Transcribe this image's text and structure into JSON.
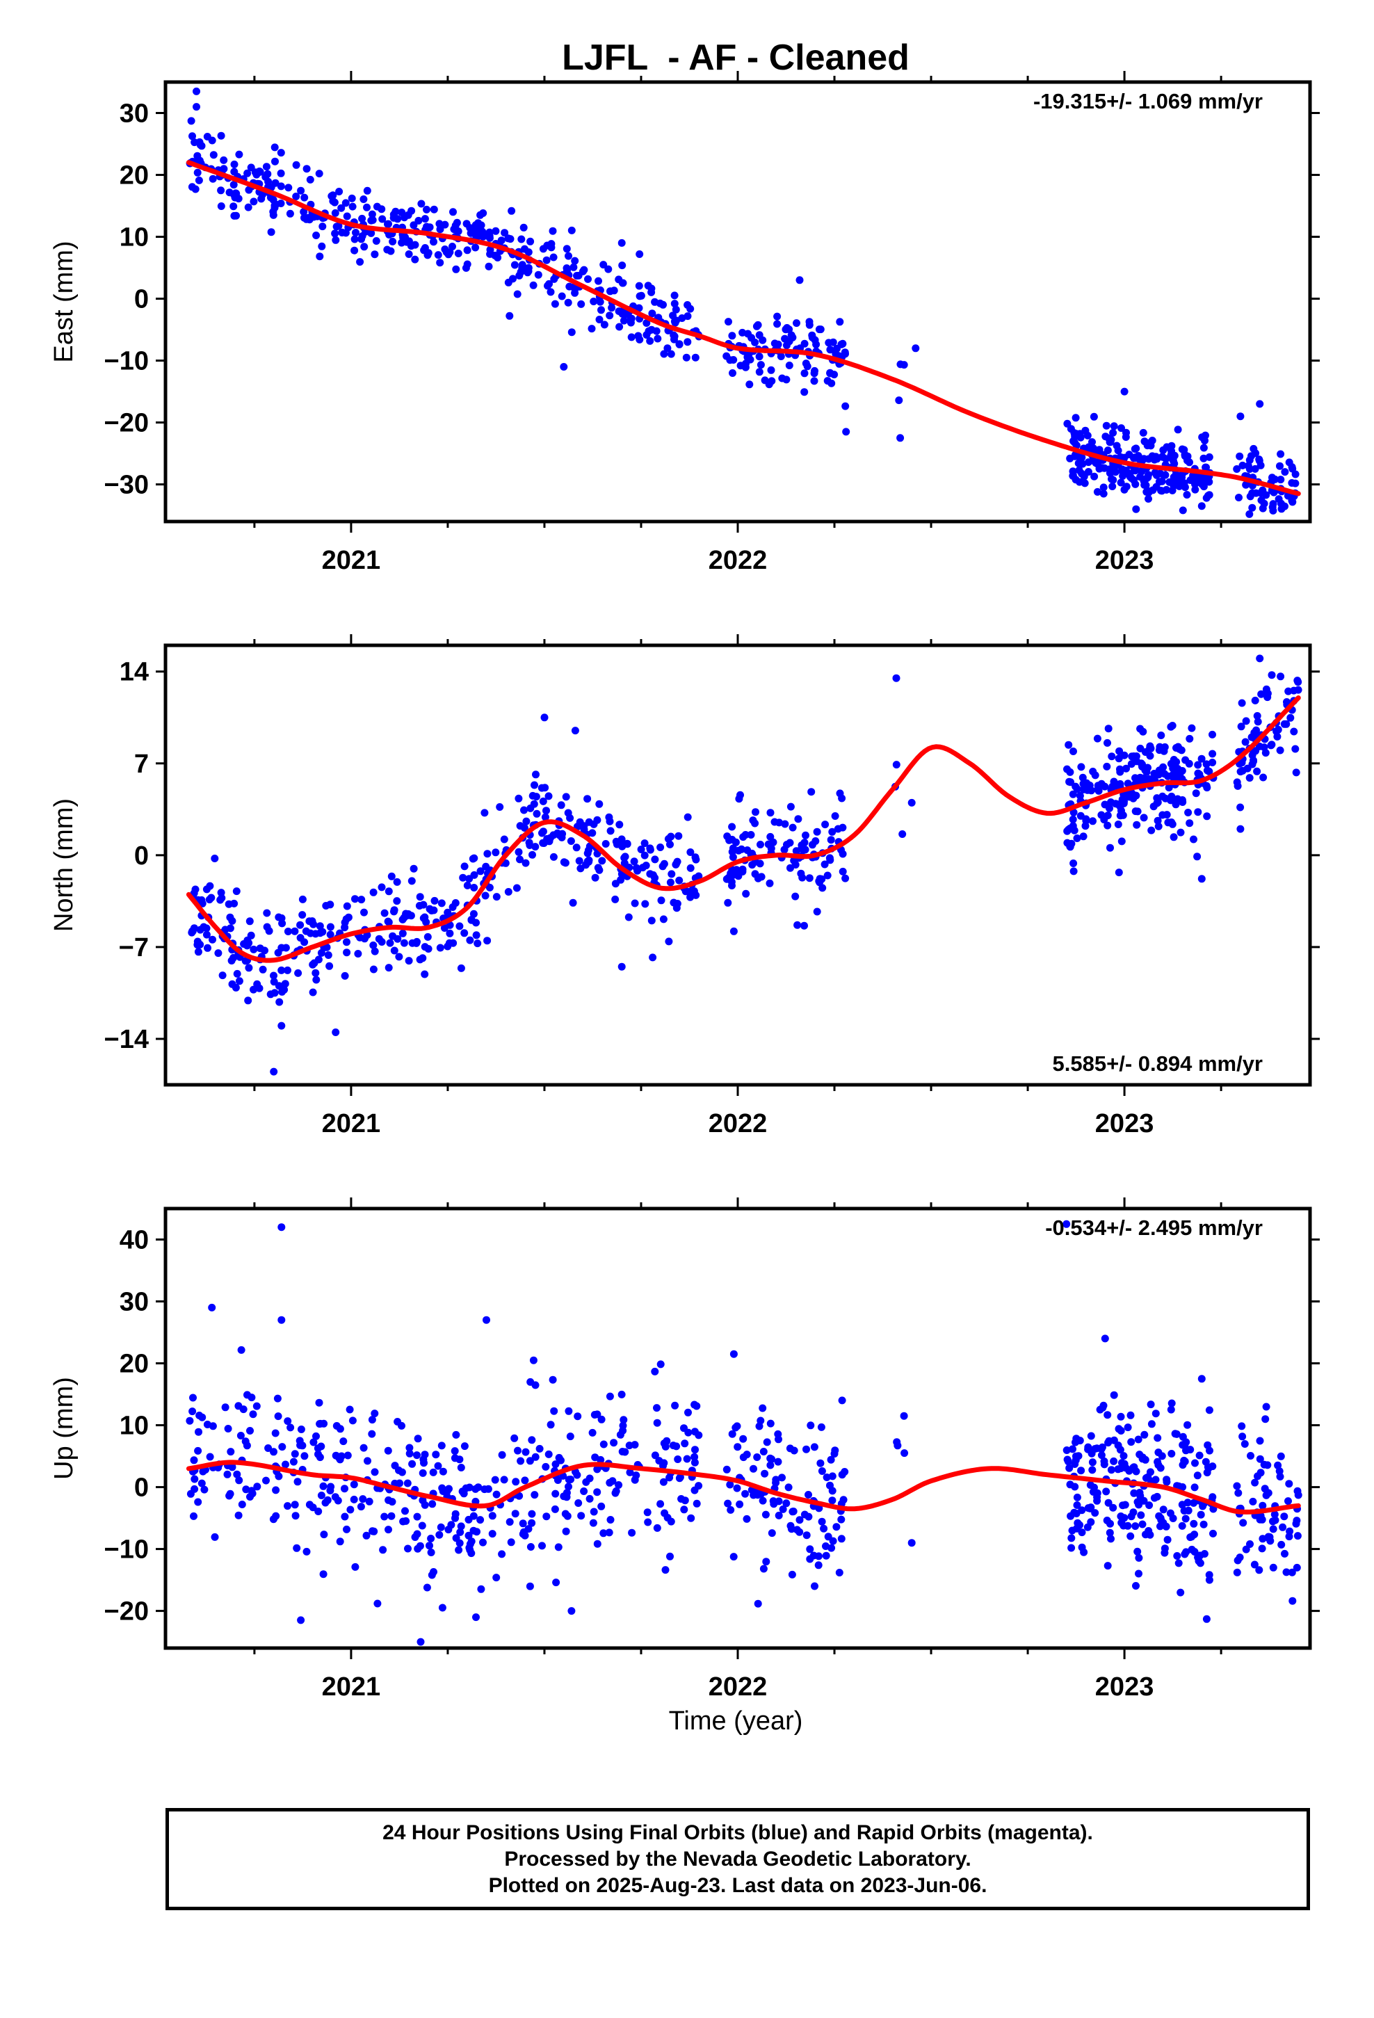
{
  "title": "LJFL  - AF - Cleaned",
  "xlabel": "Time (year)",
  "footer": {
    "line1": "24 Hour Positions Using Final Orbits (blue) and Rapid Orbits (magenta).",
    "line2": "Processed by the Nevada Geodetic Laboratory.",
    "line3": "Plotted on 2025-Aug-23. Last data on 2023-Jun-06."
  },
  "colors": {
    "points": "#0000ff",
    "fit": "#ff0000",
    "axes": "#000000"
  },
  "chart_data": [
    {
      "type": "scatter",
      "component": "east",
      "ylabel": "East (mm)",
      "rate_text": "-19.315+/- 1.069 mm/yr",
      "rate_position": "top-right",
      "xlim": [
        2020.52,
        2023.48
      ],
      "ylim": [
        -36,
        35
      ],
      "xticks": [
        2021,
        2022,
        2023
      ],
      "yticks": [
        30,
        20,
        10,
        0,
        -10,
        -20,
        -30
      ],
      "fit_nodes": [
        [
          2020.58,
          22
        ],
        [
          2020.8,
          17
        ],
        [
          2021.0,
          12
        ],
        [
          2021.2,
          10.5
        ],
        [
          2021.4,
          8
        ],
        [
          2021.6,
          2
        ],
        [
          2021.8,
          -4
        ],
        [
          2021.9,
          -6
        ],
        [
          2022.0,
          -8
        ],
        [
          2022.2,
          -9
        ],
        [
          2022.4,
          -13
        ],
        [
          2022.6,
          -18.5
        ],
        [
          2022.8,
          -23
        ],
        [
          2023.0,
          -26.5
        ],
        [
          2023.2,
          -28
        ],
        [
          2023.3,
          -29
        ],
        [
          2023.45,
          -31.5
        ]
      ],
      "segments": [
        [
          2020.58,
          2021.9,
          420
        ],
        [
          2021.97,
          2022.28,
          110
        ],
        [
          2022.4,
          2022.45,
          3
        ],
        [
          2022.85,
          2023.23,
          230
        ],
        [
          2023.29,
          2023.45,
          70
        ]
      ],
      "noise": 2.8,
      "outliers": [
        [
          2020.6,
          33.5
        ],
        [
          2020.6,
          31
        ],
        [
          2021.55,
          -11
        ],
        [
          2021.7,
          9
        ],
        [
          2022.16,
          3
        ],
        [
          2022.28,
          -21.5
        ],
        [
          2022.42,
          -22.5
        ],
        [
          2022.46,
          -8
        ],
        [
          2023.0,
          -15
        ],
        [
          2023.03,
          -34
        ],
        [
          2023.2,
          -33.5
        ],
        [
          2023.3,
          -19
        ],
        [
          2023.35,
          -17
        ]
      ],
      "seed": 11
    },
    {
      "type": "scatter",
      "component": "north",
      "ylabel": "North (mm)",
      "rate_text": "5.585+/- 0.894 mm/yr",
      "rate_position": "bottom-right",
      "xlim": [
        2020.52,
        2023.48
      ],
      "ylim": [
        -17.5,
        16
      ],
      "xticks": [
        2021,
        2022,
        2023
      ],
      "yticks": [
        14,
        7,
        0,
        -7,
        -14
      ],
      "fit_nodes": [
        [
          2020.58,
          -3
        ],
        [
          2020.65,
          -5.5
        ],
        [
          2020.72,
          -7.5
        ],
        [
          2020.8,
          -8
        ],
        [
          2020.9,
          -7
        ],
        [
          2021.0,
          -6
        ],
        [
          2021.1,
          -5.5
        ],
        [
          2021.2,
          -5.5
        ],
        [
          2021.3,
          -4
        ],
        [
          2021.4,
          0
        ],
        [
          2021.5,
          2.5
        ],
        [
          2021.6,
          1.5
        ],
        [
          2021.7,
          -1
        ],
        [
          2021.8,
          -2.5
        ],
        [
          2021.9,
          -2
        ],
        [
          2022.0,
          -0.5
        ],
        [
          2022.1,
          0
        ],
        [
          2022.2,
          0
        ],
        [
          2022.3,
          1.5
        ],
        [
          2022.4,
          5
        ],
        [
          2022.5,
          8.2
        ],
        [
          2022.6,
          7
        ],
        [
          2022.7,
          4.5
        ],
        [
          2022.8,
          3.2
        ],
        [
          2022.9,
          4
        ],
        [
          2023.0,
          5
        ],
        [
          2023.1,
          5.5
        ],
        [
          2023.2,
          5.7
        ],
        [
          2023.3,
          7.5
        ],
        [
          2023.45,
          12
        ]
      ],
      "segments": [
        [
          2020.58,
          2021.9,
          420
        ],
        [
          2021.97,
          2022.28,
          110
        ],
        [
          2022.4,
          2022.45,
          3
        ],
        [
          2022.85,
          2023.23,
          230
        ],
        [
          2023.29,
          2023.45,
          70
        ]
      ],
      "noise": 1.9,
      "outliers": [
        [
          2020.8,
          -16.5
        ],
        [
          2020.82,
          -13
        ],
        [
          2020.96,
          -13.5
        ],
        [
          2021.5,
          10.5
        ],
        [
          2021.58,
          9.5
        ],
        [
          2021.7,
          -8.5
        ],
        [
          2021.99,
          -5.8
        ],
        [
          2022.41,
          13.5
        ],
        [
          2022.45,
          4
        ],
        [
          2023.2,
          -1.8
        ],
        [
          2023.3,
          2
        ],
        [
          2023.35,
          15
        ]
      ],
      "seed": 23
    },
    {
      "type": "scatter",
      "component": "up",
      "ylabel": "Up (mm)",
      "rate_text": "-0.534+/- 2.495 mm/yr",
      "rate_position": "top-right",
      "xlim": [
        2020.52,
        2023.48
      ],
      "ylim": [
        -26,
        45
      ],
      "xticks": [
        2021,
        2022,
        2023
      ],
      "yticks": [
        40,
        30,
        20,
        10,
        0,
        -10,
        -20
      ],
      "fit_nodes": [
        [
          2020.58,
          3
        ],
        [
          2020.7,
          4
        ],
        [
          2020.9,
          2
        ],
        [
          2021.0,
          1.5
        ],
        [
          2021.1,
          0
        ],
        [
          2021.2,
          -1.5
        ],
        [
          2021.35,
          -3
        ],
        [
          2021.45,
          0
        ],
        [
          2021.6,
          3.5
        ],
        [
          2021.75,
          3
        ],
        [
          2021.9,
          2
        ],
        [
          2022.0,
          1
        ],
        [
          2022.1,
          -1
        ],
        [
          2022.2,
          -2.5
        ],
        [
          2022.3,
          -3.5
        ],
        [
          2022.4,
          -2
        ],
        [
          2022.5,
          1
        ],
        [
          2022.65,
          3
        ],
        [
          2022.8,
          2
        ],
        [
          2022.95,
          1
        ],
        [
          2023.1,
          0
        ],
        [
          2023.2,
          -2
        ],
        [
          2023.3,
          -4
        ],
        [
          2023.45,
          -3
        ]
      ],
      "segments": [
        [
          2020.58,
          2021.9,
          420
        ],
        [
          2021.97,
          2022.28,
          110
        ],
        [
          2022.4,
          2022.45,
          3
        ],
        [
          2022.85,
          2023.23,
          230
        ],
        [
          2023.29,
          2023.45,
          70
        ]
      ],
      "noise": 6.5,
      "outliers": [
        [
          2020.82,
          42
        ],
        [
          2020.82,
          27
        ],
        [
          2020.87,
          -21.5
        ],
        [
          2020.64,
          29
        ],
        [
          2021.18,
          -25
        ],
        [
          2021.35,
          27
        ],
        [
          2021.57,
          -20
        ],
        [
          2021.99,
          21.5
        ],
        [
          2022.27,
          14
        ],
        [
          2022.43,
          11.5
        ],
        [
          2022.45,
          -9
        ],
        [
          2022.85,
          42.5
        ],
        [
          2022.95,
          24
        ],
        [
          2023.2,
          17.5
        ],
        [
          2023.22,
          -15
        ]
      ],
      "seed": 37
    }
  ]
}
